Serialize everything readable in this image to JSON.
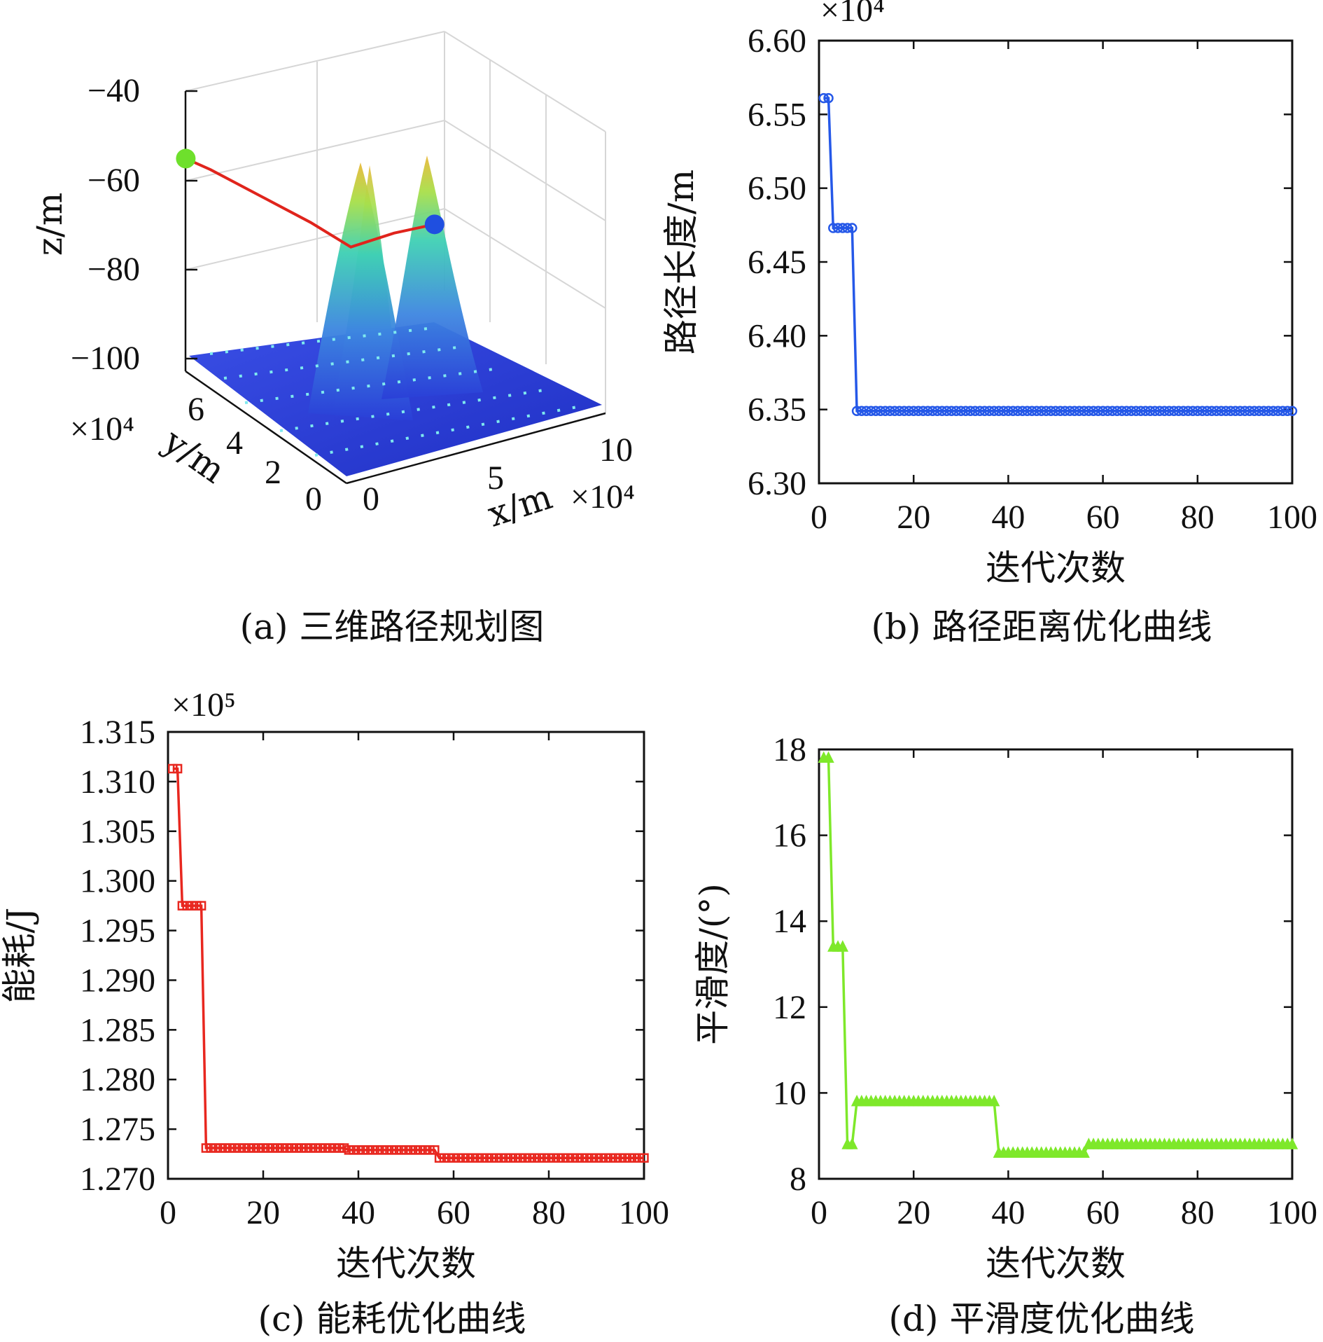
{
  "chart_data": [
    {
      "id": "a",
      "type": "surface3d",
      "caption": "(a) 三维路径规划图",
      "xlabel": "x/m",
      "ylabel": "y/m",
      "zlabel": "z/m",
      "x_multiplier": "×10⁴",
      "y_multiplier": "×10⁴",
      "x_ticks": [
        "0",
        "5",
        "10"
      ],
      "y_ticks": [
        "0",
        "2",
        "4",
        "6"
      ],
      "z_ticks": [
        "−40",
        "−60",
        "−80",
        "−100"
      ],
      "xlim": [
        0,
        10
      ],
      "ylim": [
        0,
        7
      ],
      "zlim": [
        -100,
        -40
      ],
      "peaks": [
        {
          "x": 4.2,
          "y": 4.6,
          "z": -57
        },
        {
          "x": 4.0,
          "y": 5.6,
          "z": -62
        },
        {
          "x": 7.0,
          "y": 6.4,
          "z": -59
        }
      ],
      "path": [
        {
          "x": 0.0,
          "y": 7.0,
          "z": -52
        },
        {
          "x": 0.6,
          "y": 6.6,
          "z": -54
        },
        {
          "x": 2.0,
          "y": 6.0,
          "z": -60
        },
        {
          "x": 3.4,
          "y": 5.4,
          "z": -66
        },
        {
          "x": 4.6,
          "y": 5.0,
          "z": -72
        },
        {
          "x": 6.0,
          "y": 4.7,
          "z": -70
        },
        {
          "x": 7.3,
          "y": 4.4,
          "z": -69
        }
      ],
      "start_color": "#6ee02c",
      "end_color": "#1f4fe0",
      "path_color": "#e0241c"
    },
    {
      "id": "b",
      "type": "line",
      "caption": "(b) 路径距离优化曲线",
      "xlabel": "迭代次数",
      "ylabel": "路径长度/m",
      "y_multiplier": "×10⁴",
      "xlim": [
        0,
        100
      ],
      "ylim": [
        6.3,
        6.6
      ],
      "x_ticks": [
        0,
        20,
        40,
        60,
        80,
        100
      ],
      "y_ticks": [
        "6.30",
        "6.35",
        "6.40",
        "6.45",
        "6.50",
        "6.55",
        "6.60"
      ],
      "marker": "circle",
      "color": "#2558e8",
      "segments": [
        {
          "from": 1,
          "to": 2,
          "value": 6.561
        },
        {
          "from": 3,
          "to": 7,
          "value": 6.473
        },
        {
          "from": 8,
          "to": 100,
          "value": 6.349
        }
      ]
    },
    {
      "id": "c",
      "type": "line",
      "caption": "(c) 能耗优化曲线",
      "xlabel": "迭代次数",
      "ylabel": "能耗/J",
      "y_multiplier": "×10⁵",
      "xlim": [
        0,
        100
      ],
      "ylim": [
        1.27,
        1.315
      ],
      "x_ticks": [
        0,
        20,
        40,
        60,
        80,
        100
      ],
      "y_ticks": [
        "1.270",
        "1.275",
        "1.280",
        "1.285",
        "1.290",
        "1.295",
        "1.300",
        "1.305",
        "1.310",
        "1.315"
      ],
      "marker": "square",
      "color": "#e8271f",
      "segments": [
        {
          "from": 1,
          "to": 2,
          "value": 1.3113
        },
        {
          "from": 3,
          "to": 7,
          "value": 1.2975
        },
        {
          "from": 8,
          "to": 37,
          "value": 1.2731
        },
        {
          "from": 38,
          "to": 56,
          "value": 1.2729
        },
        {
          "from": 57,
          "to": 100,
          "value": 1.2721
        }
      ]
    },
    {
      "id": "d",
      "type": "line",
      "caption": "(d) 平滑度优化曲线",
      "xlabel": "迭代次数",
      "ylabel": "平滑度/(°)",
      "xlim": [
        0,
        100
      ],
      "ylim": [
        8,
        18
      ],
      "x_ticks": [
        0,
        20,
        40,
        60,
        80,
        100
      ],
      "y_ticks": [
        "8",
        "10",
        "12",
        "14",
        "16",
        "18"
      ],
      "marker": "triangle",
      "color": "#7ee82a",
      "segments": [
        {
          "from": 1,
          "to": 2,
          "value": 17.8
        },
        {
          "from": 3,
          "to": 5,
          "value": 13.4
        },
        {
          "from": 6,
          "to": 7,
          "value": 8.8
        },
        {
          "from": 8,
          "to": 37,
          "value": 9.8
        },
        {
          "from": 38,
          "to": 56,
          "value": 8.6
        },
        {
          "from": 57,
          "to": 100,
          "value": 8.8
        }
      ]
    }
  ]
}
